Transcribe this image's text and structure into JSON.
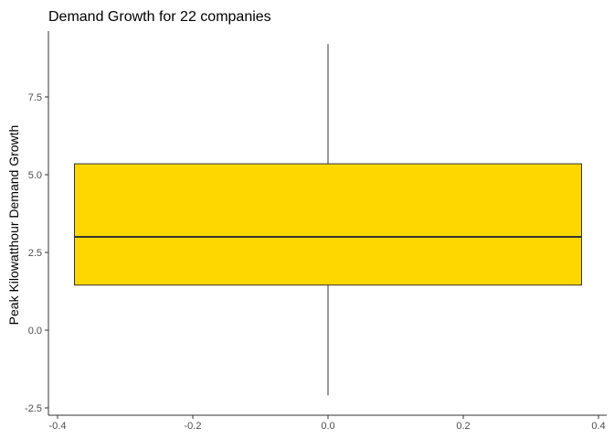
{
  "chart_data": {
    "type": "box",
    "title": "Demand Growth for 22 companies",
    "xlabel": "",
    "ylabel": "Peak Kilowatthour Demand Growth",
    "xlim": [
      -0.4,
      0.4
    ],
    "ylim": [
      -2.5,
      9.2
    ],
    "x_ticks": [
      -0.4,
      -0.2,
      0.0,
      0.2,
      0.4
    ],
    "x_tick_labels": [
      "-0.4",
      "-0.2",
      "0.0",
      "0.2",
      "0.4"
    ],
    "y_ticks": [
      -2.5,
      0.0,
      2.5,
      5.0,
      7.5
    ],
    "y_tick_labels": [
      "-2.5",
      "0.0",
      "2.5",
      "5.0",
      "7.5"
    ],
    "grid": false,
    "box": {
      "x_left": -0.375,
      "x_right": 0.375,
      "x_center": 0.0,
      "min": -2.1,
      "q1": 1.45,
      "median": 3.0,
      "q3": 5.35,
      "max": 9.2
    },
    "colors": {
      "fill": "#FFD700",
      "stroke": "#333333",
      "axis": "#333333"
    }
  }
}
